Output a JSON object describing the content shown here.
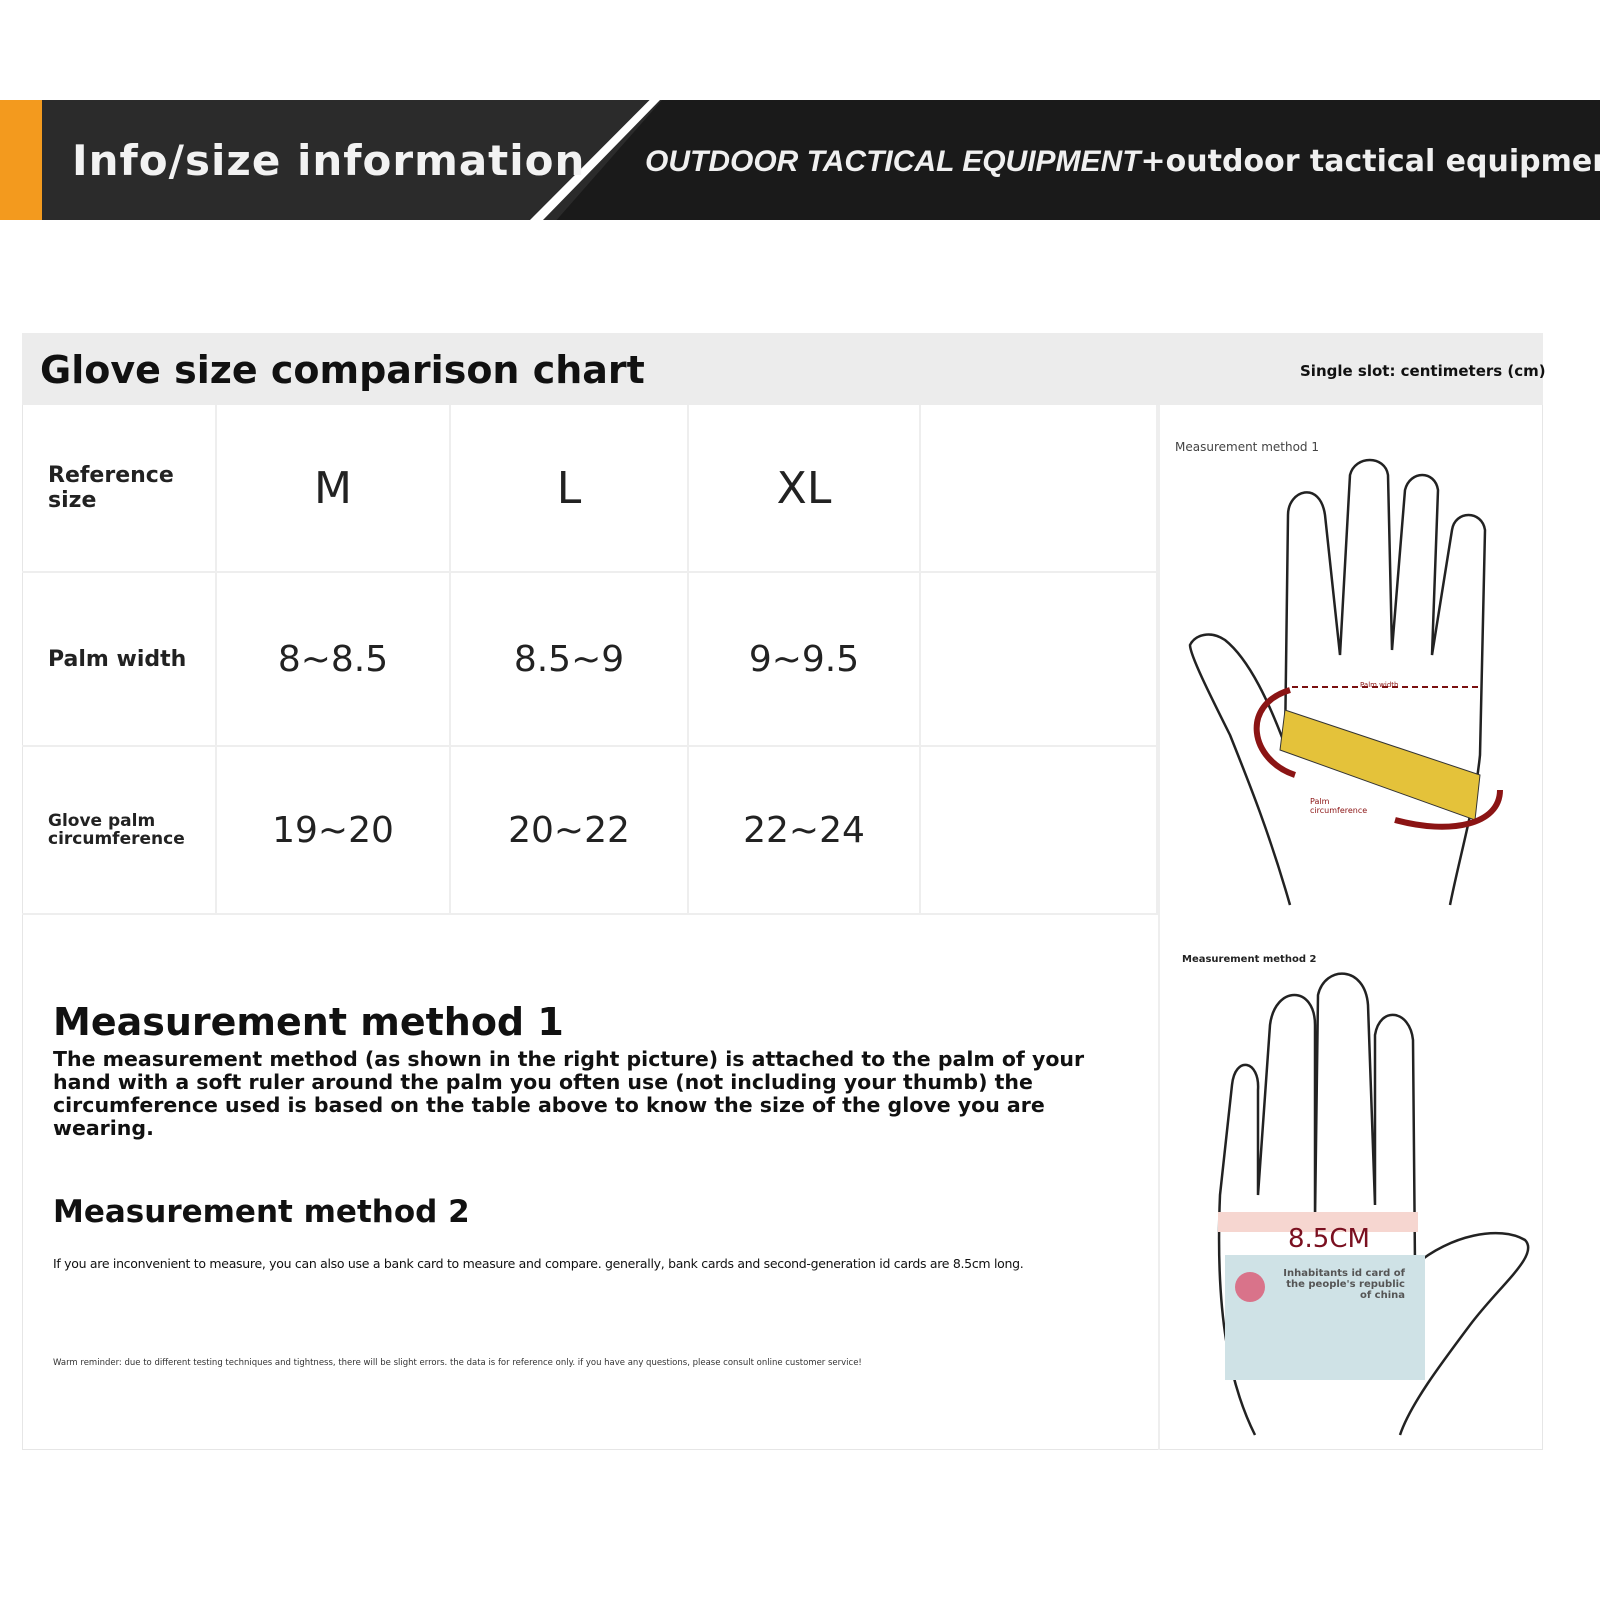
{
  "banner": {
    "title": "Info/size information",
    "subtitle_italic": "OUTDOOR TACTICAL EQUIPMENT",
    "subtitle_rest": "+outdoor tactical equipment",
    "accent": "#f39a1e"
  },
  "chart": {
    "title": "Glove size comparison chart",
    "unit": "Single slot: centimeters (cm)",
    "table": {
      "rows": [
        {
          "label": "Reference size",
          "values": [
            "M",
            "L",
            "XL",
            ""
          ]
        },
        {
          "label": "Palm width",
          "values": [
            "8~8.5",
            "8.5~9",
            "9~9.5",
            ""
          ]
        },
        {
          "label": "Glove palm circumference",
          "values": [
            "19~20",
            "20~22",
            "22~24",
            ""
          ]
        }
      ]
    }
  },
  "method1": {
    "title": "Measurement method 1",
    "body": "The measurement method (as shown in the right picture) is attached to the palm of your hand with a soft ruler around the palm you often use (not including your thumb) the circumference used is based on the table above to know the size of the glove you are wearing."
  },
  "method2": {
    "title": "Measurement method 2",
    "body": "If you are inconvenient to measure, you can also use a bank card to measure and compare. generally, bank cards and second-generation id cards are 8.5cm long."
  },
  "warning": "Warm reminder: due to different testing techniques and tightness, there will be slight errors. the data is for reference only. if you have any questions, please consult online customer service!",
  "figures": {
    "fig1_label": "Measurement method 1",
    "fig1_width": "Palm width",
    "fig1_circ": "Palm circumference",
    "fig2_label": "Measurement method 2",
    "fig2_measure": "8.5CM",
    "card_text": "Inhabitants id card of the people's republic of china"
  }
}
